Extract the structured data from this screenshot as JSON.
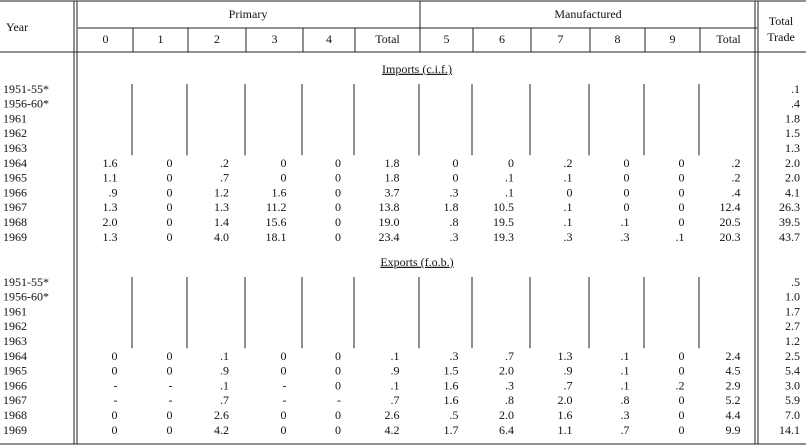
{
  "header": {
    "year": "Year",
    "primary": "Primary",
    "manufactured": "Manufactured",
    "total_trade": [
      "Total",
      "Trade"
    ],
    "columns": [
      "0",
      "1",
      "2",
      "3",
      "4",
      "Total",
      "5",
      "6",
      "7",
      "8",
      "9",
      "Total"
    ]
  },
  "sections": [
    {
      "title": "Imports (c.i.f.)",
      "rows": [
        [
          "1951-55*",
          null,
          null,
          null,
          null,
          null,
          null,
          null,
          null,
          null,
          null,
          null,
          null,
          ".1"
        ],
        [
          "1956-60*",
          null,
          null,
          null,
          null,
          null,
          null,
          null,
          null,
          null,
          null,
          null,
          null,
          ".4"
        ],
        [
          "1961",
          null,
          null,
          null,
          null,
          null,
          null,
          null,
          null,
          null,
          null,
          null,
          null,
          "1.8"
        ],
        [
          "1962",
          null,
          null,
          null,
          null,
          null,
          null,
          null,
          null,
          null,
          null,
          null,
          null,
          "1.5"
        ],
        [
          "1963",
          null,
          null,
          null,
          null,
          null,
          null,
          null,
          null,
          null,
          null,
          null,
          null,
          "1.3"
        ],
        [
          "1964",
          "1.6",
          "0",
          ".2",
          "0",
          "0",
          "1.8",
          "0",
          "0",
          ".2",
          "0",
          "0",
          ".2",
          "2.0"
        ],
        [
          "1965",
          "1.1",
          "0",
          ".7",
          "0",
          "0",
          "1.8",
          "0",
          ".1",
          ".1",
          "0",
          "0",
          ".2",
          "2.0"
        ],
        [
          "1966",
          ".9",
          "0",
          "1.2",
          "1.6",
          "0",
          "3.7",
          ".3",
          ".1",
          "0",
          "0",
          "0",
          ".4",
          "4.1"
        ],
        [
          "1967",
          "1.3",
          "0",
          "1.3",
          "11.2",
          "0",
          "13.8",
          "1.8",
          "10.5",
          ".1",
          "0",
          "0",
          "12.4",
          "26.3"
        ],
        [
          "1968",
          "2.0",
          "0",
          "1.4",
          "15.6",
          "0",
          "19.0",
          ".8",
          "19.5",
          ".1",
          ".1",
          "0",
          "20.5",
          "39.5"
        ],
        [
          "1969",
          "1.3",
          "0",
          "4.0",
          "18.1",
          "0",
          "23.4",
          ".3",
          "19.3",
          ".3",
          ".3",
          ".1",
          "20.3",
          "43.7"
        ]
      ]
    },
    {
      "title": "Exports (f.o.b.)",
      "rows": [
        [
          "1951-55*",
          null,
          null,
          null,
          null,
          null,
          null,
          null,
          null,
          null,
          null,
          null,
          null,
          ".5"
        ],
        [
          "1956-60*",
          null,
          null,
          null,
          null,
          null,
          null,
          null,
          null,
          null,
          null,
          null,
          null,
          "1.0"
        ],
        [
          "1961",
          null,
          null,
          null,
          null,
          null,
          null,
          null,
          null,
          null,
          null,
          null,
          null,
          "1.7"
        ],
        [
          "1962",
          null,
          null,
          null,
          null,
          null,
          null,
          null,
          null,
          null,
          null,
          null,
          null,
          "2.7"
        ],
        [
          "1963",
          null,
          null,
          null,
          null,
          null,
          null,
          null,
          null,
          null,
          null,
          null,
          null,
          "1.2"
        ],
        [
          "1964",
          "0",
          "0",
          ".1",
          "0",
          "0",
          ".1",
          ".3",
          ".7",
          "1.3",
          ".1",
          "0",
          "2.4",
          "2.5"
        ],
        [
          "1965",
          "0",
          "0",
          ".9",
          "0",
          "0",
          ".9",
          "1.5",
          "2.0",
          ".9",
          ".1",
          "0",
          "4.5",
          "5.4"
        ],
        [
          "1966",
          "-",
          "-",
          ".1",
          "-",
          "0",
          ".1",
          "1.6",
          ".3",
          ".7",
          ".1",
          ".2",
          "2.9",
          "3.0"
        ],
        [
          "1967",
          "-",
          "-",
          ".7",
          "-",
          "-",
          ".7",
          "1.6",
          ".8",
          "2.0",
          ".8",
          "0",
          "5.2",
          "5.9"
        ],
        [
          "1968",
          "0",
          "0",
          "2.6",
          "0",
          "0",
          "2.6",
          ".5",
          "2.0",
          "1.6",
          ".3",
          "0",
          "4.4",
          "7.0"
        ],
        [
          "1969",
          "0",
          "0",
          "4.2",
          "0",
          "0",
          "4.2",
          "1.7",
          "6.4",
          "1.1",
          ".7",
          "0",
          "9.9",
          "14.1"
        ]
      ]
    }
  ]
}
